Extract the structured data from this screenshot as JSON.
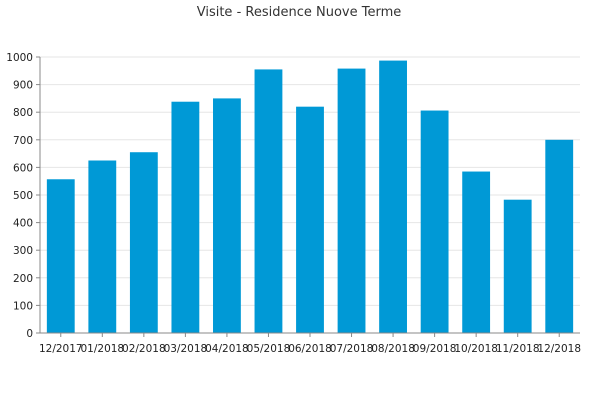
{
  "chart_data": {
    "type": "bar",
    "title": "Visite - Residence Nuove Terme",
    "xlabel": "",
    "ylabel": "",
    "categories": [
      "12/2017",
      "01/2018",
      "02/2018",
      "03/2018",
      "04/2018",
      "05/2018",
      "06/2018",
      "07/2018",
      "08/2018",
      "09/2018",
      "10/2018",
      "11/2018",
      "12/2018"
    ],
    "values": [
      557,
      625,
      655,
      838,
      850,
      955,
      820,
      958,
      987,
      806,
      585,
      483,
      700
    ],
    "ylim": [
      0,
      1000
    ],
    "yticks": [
      "0",
      "100",
      "200",
      "300",
      "400",
      "500",
      "600",
      "700",
      "800",
      "900",
      "1000"
    ],
    "grid": true,
    "bar_color": "#0099d6"
  }
}
